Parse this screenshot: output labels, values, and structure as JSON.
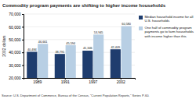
{
  "chart_data": {
    "type": "bar",
    "title": "Commodity program payments are shifting to higher income households",
    "y_label": "2002 dollars",
    "source": "Source: U.S. Department of Commerce, Bureau of the Census, \"Current Population Reports,\" Series P-60.",
    "categories": [
      "1989",
      "1991",
      "1997",
      "2002"
    ],
    "series": [
      {
        "name": "Median household income for all U.S. households",
        "color": "#1f3d6e",
        "values": [
          40484,
          38791,
          41346,
          42409
        ],
        "value_labels": [
          "40,484",
          "38,791",
          "41,346",
          "42,409"
        ]
      },
      {
        "name": "One half of commodity program payments go to farm households with income higher than this",
        "color": "#b8cfe4",
        "values": [
          46661,
          45594,
          53945,
          60580
        ],
        "value_labels": [
          "46,661",
          "45,594",
          "53,945",
          "60,580"
        ]
      }
    ],
    "ylim": [
      20000,
      70000
    ],
    "yticks": [
      {
        "value": 20000,
        "label": "20,000"
      },
      {
        "value": 30000,
        "label": "30,000"
      },
      {
        "value": 40000,
        "label": "40,000"
      },
      {
        "value": 50000,
        "label": "50,000"
      },
      {
        "value": 60000,
        "label": "60,000"
      },
      {
        "value": 70000,
        "label": "70,000"
      }
    ],
    "grid": true,
    "legend": "right",
    "data_labels": true
  }
}
